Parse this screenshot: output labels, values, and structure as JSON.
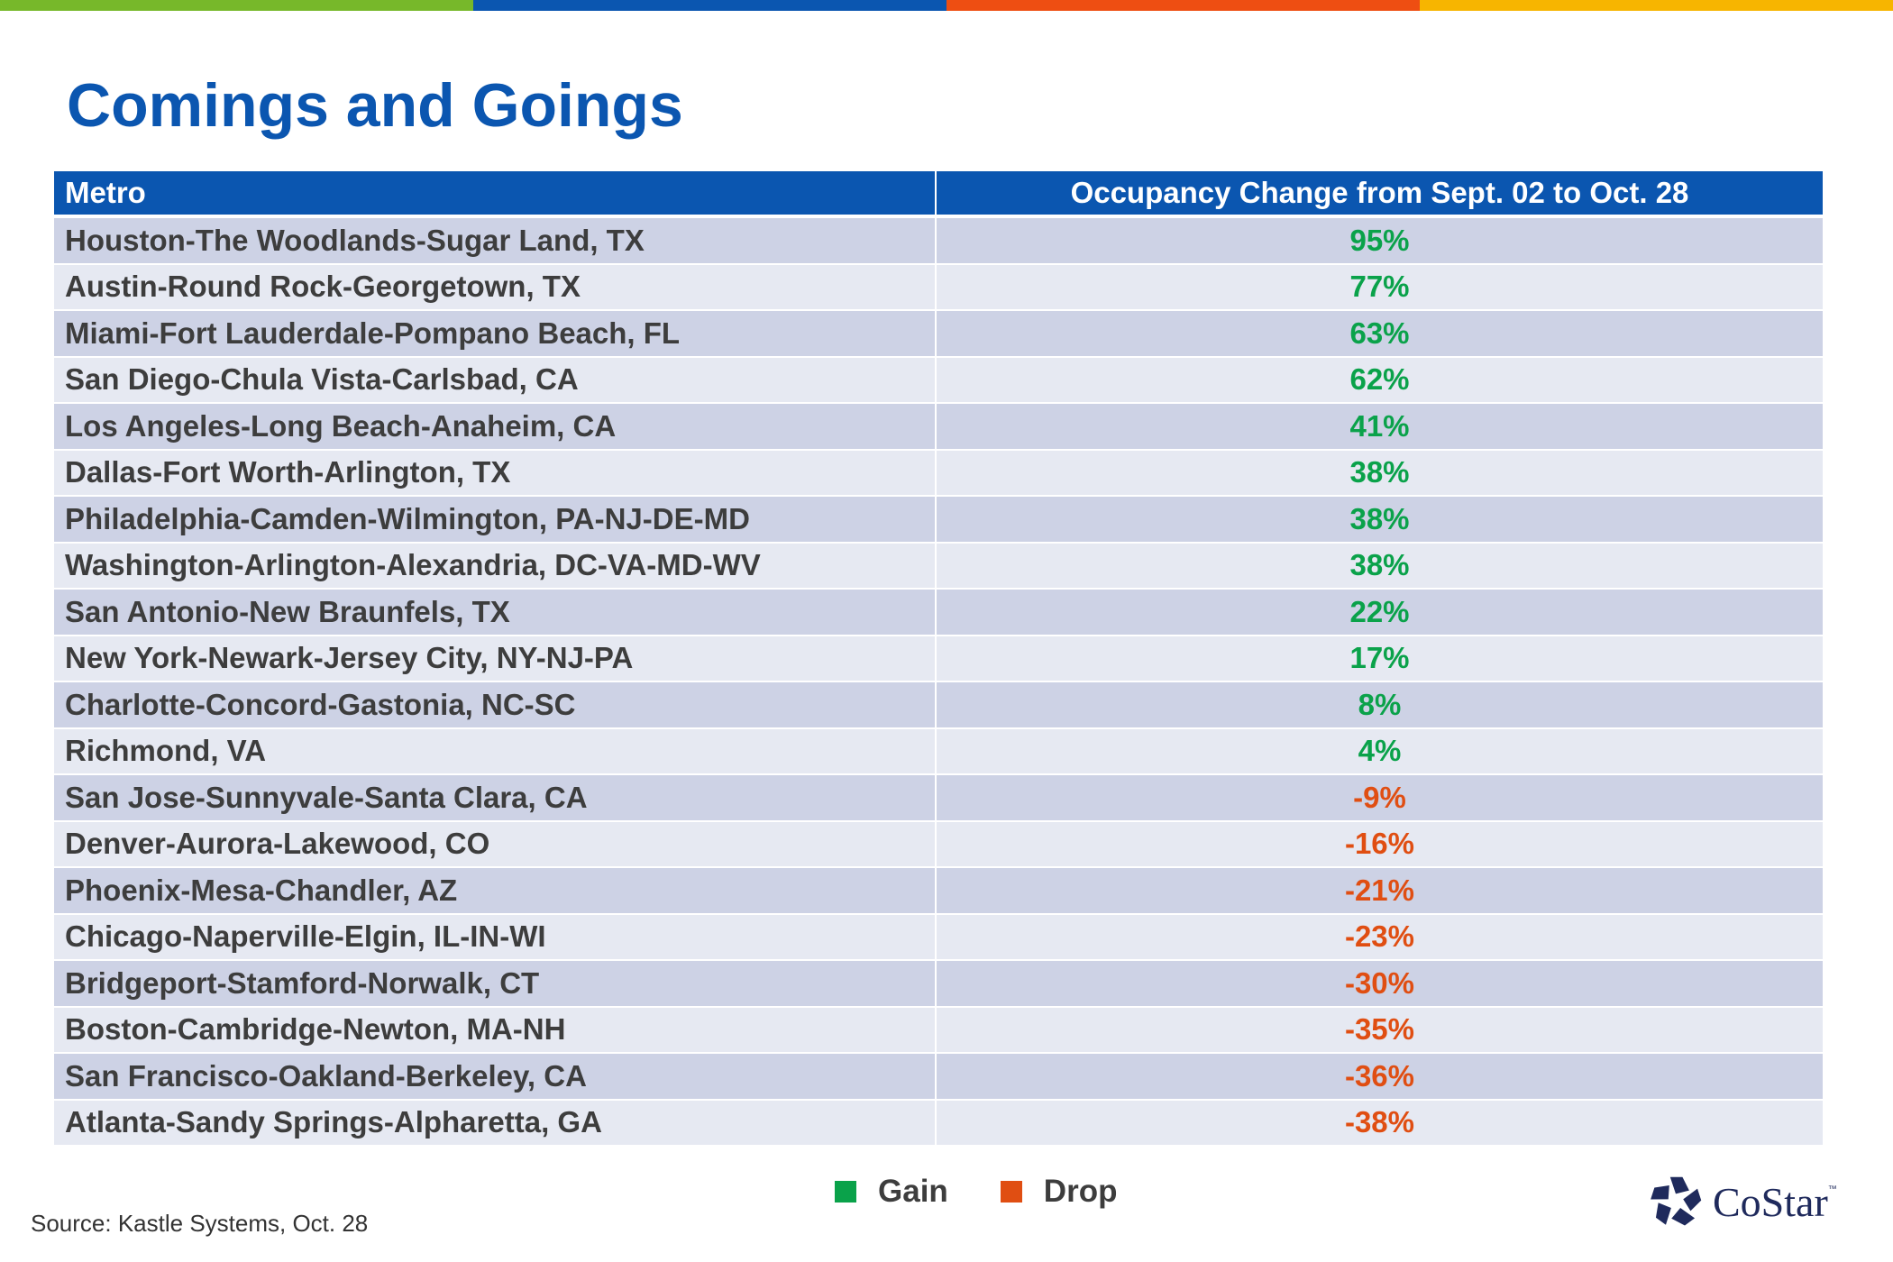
{
  "colors": {
    "bar_green": "#77b82a",
    "bar_blue": "#0b56b0",
    "bar_orange": "#ee4e12",
    "bar_yellow": "#f7b500",
    "title": "#0b56b0",
    "header_bg": "#0b56b0",
    "row_dark": "#cdd2e5",
    "row_light": "#e6e9f2",
    "gain": "#0aa24a",
    "drop": "#e04e12"
  },
  "title": "Comings and Goings",
  "table": {
    "header_metro": "Metro",
    "header_change": "Occupancy Change from Sept. 02 to Oct. 28"
  },
  "legend": {
    "gain_label": "Gain",
    "drop_label": "Drop"
  },
  "source": "Source: Kastle Systems, Oct. 28",
  "logo": {
    "icon": "costar-star-icon",
    "name": "CoStar",
    "tm": "™"
  },
  "chart_data": {
    "type": "table",
    "title": "Comings and Goings",
    "columns": [
      "Metro",
      "Occupancy Change from Sept. 02 to Oct. 28"
    ],
    "rows": [
      {
        "metro": "Houston-The Woodlands-Sugar Land, TX",
        "change": "95%",
        "value": 95,
        "status": "gain"
      },
      {
        "metro": "Austin-Round Rock-Georgetown, TX",
        "change": "77%",
        "value": 77,
        "status": "gain"
      },
      {
        "metro": "Miami-Fort Lauderdale-Pompano Beach, FL",
        "change": "63%",
        "value": 63,
        "status": "gain"
      },
      {
        "metro": "San Diego-Chula Vista-Carlsbad, CA",
        "change": "62%",
        "value": 62,
        "status": "gain"
      },
      {
        "metro": "Los Angeles-Long Beach-Anaheim, CA",
        "change": "41%",
        "value": 41,
        "status": "gain"
      },
      {
        "metro": "Dallas-Fort Worth-Arlington, TX",
        "change": "38%",
        "value": 38,
        "status": "gain"
      },
      {
        "metro": "Philadelphia-Camden-Wilmington, PA-NJ-DE-MD",
        "change": "38%",
        "value": 38,
        "status": "gain"
      },
      {
        "metro": "Washington-Arlington-Alexandria, DC-VA-MD-WV",
        "change": "38%",
        "value": 38,
        "status": "gain"
      },
      {
        "metro": "San Antonio-New Braunfels, TX",
        "change": "22%",
        "value": 22,
        "status": "gain"
      },
      {
        "metro": "New York-Newark-Jersey City, NY-NJ-PA",
        "change": "17%",
        "value": 17,
        "status": "gain"
      },
      {
        "metro": "Charlotte-Concord-Gastonia, NC-SC",
        "change": "8%",
        "value": 8,
        "status": "gain"
      },
      {
        "metro": "Richmond, VA",
        "change": "4%",
        "value": 4,
        "status": "gain"
      },
      {
        "metro": "San Jose-Sunnyvale-Santa Clara, CA",
        "change": "-9%",
        "value": -9,
        "status": "drop"
      },
      {
        "metro": "Denver-Aurora-Lakewood, CO",
        "change": "-16%",
        "value": -16,
        "status": "drop"
      },
      {
        "metro": "Phoenix-Mesa-Chandler, AZ",
        "change": "-21%",
        "value": -21,
        "status": "drop"
      },
      {
        "metro": "Chicago-Naperville-Elgin, IL-IN-WI",
        "change": "-23%",
        "value": -23,
        "status": "drop"
      },
      {
        "metro": "Bridgeport-Stamford-Norwalk, CT",
        "change": "-30%",
        "value": -30,
        "status": "drop"
      },
      {
        "metro": "Boston-Cambridge-Newton, MA-NH",
        "change": "-35%",
        "value": -35,
        "status": "drop"
      },
      {
        "metro": "San Francisco-Oakland-Berkeley, CA",
        "change": "-36%",
        "value": -36,
        "status": "drop"
      },
      {
        "metro": "Atlanta-Sandy Springs-Alpharetta, GA",
        "change": "-38%",
        "value": -38,
        "status": "drop"
      }
    ],
    "legend": [
      "Gain",
      "Drop"
    ]
  }
}
